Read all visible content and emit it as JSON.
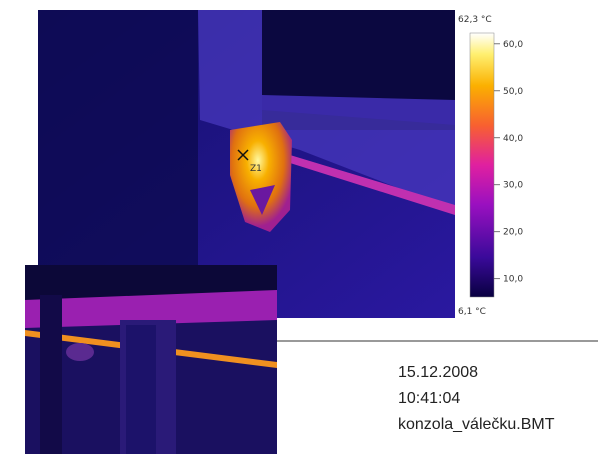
{
  "image": {
    "marker_label": "Z1"
  },
  "colorbar": {
    "max": {
      "value": 62.3,
      "label": "62,3 °C"
    },
    "min": {
      "value": 6.1,
      "label": "6,1 °C"
    },
    "ticks": [
      {
        "value": 60,
        "label": "60,0"
      },
      {
        "value": 50,
        "label": "50,0"
      },
      {
        "value": 40,
        "label": "40,0"
      },
      {
        "value": 30,
        "label": "30,0"
      },
      {
        "value": 20,
        "label": "20,0"
      },
      {
        "value": 10,
        "label": "10,0"
      }
    ]
  },
  "info": {
    "date": "15.12.2008",
    "time": "10:41:04",
    "filename": "konzola_válečku.BMT"
  }
}
